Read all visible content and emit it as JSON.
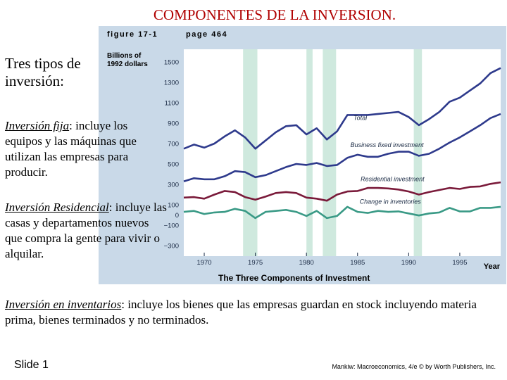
{
  "slide": {
    "title": "COMPONENTES DE LA INVERSION.",
    "intro": "Tres tipos de inversión:",
    "fixed": {
      "term": "Inversión fija",
      "rest": ": incluye los equipos y las máquinas que utilizan las empresas para producir."
    },
    "residential": {
      "term": "Inversión Residencial",
      "rest": ": incluye las casas y departamentos nuevos que compra la gente para vivir o alquilar."
    },
    "inventory": {
      "term": "Inversión en inventarios",
      "rest": ": incluye los bienes que las empresas guardan en stock incluyendo materia prima, bienes terminados y no terminados."
    },
    "slide_number": "Slide 1",
    "credit": "Mankiw: Macroeconomics, 4/e © by Worth Publishers, Inc."
  },
  "figure": {
    "header_left": "figure 17-1",
    "header_right": "page 464",
    "caption": "The Three Components of Investment"
  },
  "colors": {
    "title": "#b00000",
    "panel_bg": "#c9d9e8",
    "plot_bg": "#ffffff",
    "recession": "#cfe9de",
    "total": "#2e3a8c",
    "business_fixed": "#2e3a8c",
    "residential": "#7a1a3a",
    "inventories": "#3a9a86",
    "text": "#1a2a44"
  },
  "chart_data": {
    "type": "line",
    "title": "The Three Components of Investment",
    "ylabel": "Billions of 1992 dollars",
    "xlabel": "Year",
    "y_ticks": [
      1500,
      1300,
      1100,
      900,
      700,
      500,
      300,
      100,
      0,
      -100,
      -300
    ],
    "x_ticks": [
      1970,
      1975,
      1980,
      1985,
      1990,
      1995
    ],
    "xlim": [
      1968,
      1999
    ],
    "ylim": [
      -300,
      1500
    ],
    "grid": false,
    "recessions": [
      [
        1973.8,
        1975.2
      ],
      [
        1980.0,
        1980.6
      ],
      [
        1981.6,
        1982.9
      ],
      [
        1990.5,
        1991.3
      ]
    ],
    "series": [
      {
        "name": "Total",
        "key": "total",
        "points": [
          [
            1968,
            650
          ],
          [
            1969,
            690
          ],
          [
            1970,
            660
          ],
          [
            1971,
            700
          ],
          [
            1972,
            770
          ],
          [
            1973,
            830
          ],
          [
            1974,
            760
          ],
          [
            1975,
            650
          ],
          [
            1976,
            730
          ],
          [
            1977,
            810
          ],
          [
            1978,
            870
          ],
          [
            1979,
            880
          ],
          [
            1980,
            790
          ],
          [
            1981,
            850
          ],
          [
            1982,
            740
          ],
          [
            1983,
            820
          ],
          [
            1984,
            980
          ],
          [
            1985,
            980
          ],
          [
            1986,
            980
          ],
          [
            1987,
            990
          ],
          [
            1988,
            1000
          ],
          [
            1989,
            1010
          ],
          [
            1990,
            960
          ],
          [
            1991,
            880
          ],
          [
            1992,
            940
          ],
          [
            1993,
            1010
          ],
          [
            1994,
            1110
          ],
          [
            1995,
            1150
          ],
          [
            1996,
            1220
          ],
          [
            1997,
            1290
          ],
          [
            1998,
            1390
          ],
          [
            1999,
            1440
          ]
        ]
      },
      {
        "name": "Business fixed investment",
        "key": "business_fixed",
        "points": [
          [
            1968,
            330
          ],
          [
            1969,
            360
          ],
          [
            1970,
            350
          ],
          [
            1971,
            350
          ],
          [
            1972,
            380
          ],
          [
            1973,
            430
          ],
          [
            1974,
            420
          ],
          [
            1975,
            370
          ],
          [
            1976,
            390
          ],
          [
            1977,
            430
          ],
          [
            1978,
            470
          ],
          [
            1979,
            500
          ],
          [
            1980,
            490
          ],
          [
            1981,
            510
          ],
          [
            1982,
            480
          ],
          [
            1983,
            490
          ],
          [
            1984,
            560
          ],
          [
            1985,
            590
          ],
          [
            1986,
            570
          ],
          [
            1987,
            570
          ],
          [
            1988,
            600
          ],
          [
            1989,
            620
          ],
          [
            1990,
            620
          ],
          [
            1991,
            580
          ],
          [
            1992,
            600
          ],
          [
            1993,
            650
          ],
          [
            1994,
            710
          ],
          [
            1995,
            760
          ],
          [
            1996,
            820
          ],
          [
            1997,
            880
          ],
          [
            1998,
            950
          ],
          [
            1999,
            990
          ]
        ]
      },
      {
        "name": "Residential investment",
        "key": "residential",
        "points": [
          [
            1968,
            170
          ],
          [
            1969,
            175
          ],
          [
            1970,
            160
          ],
          [
            1971,
            200
          ],
          [
            1972,
            235
          ],
          [
            1973,
            225
          ],
          [
            1974,
            175
          ],
          [
            1975,
            150
          ],
          [
            1976,
            180
          ],
          [
            1977,
            215
          ],
          [
            1978,
            225
          ],
          [
            1979,
            215
          ],
          [
            1980,
            170
          ],
          [
            1981,
            160
          ],
          [
            1982,
            140
          ],
          [
            1983,
            200
          ],
          [
            1984,
            230
          ],
          [
            1985,
            235
          ],
          [
            1986,
            265
          ],
          [
            1987,
            265
          ],
          [
            1988,
            260
          ],
          [
            1989,
            250
          ],
          [
            1990,
            230
          ],
          [
            1991,
            200
          ],
          [
            1992,
            225
          ],
          [
            1993,
            245
          ],
          [
            1994,
            265
          ],
          [
            1995,
            255
          ],
          [
            1996,
            275
          ],
          [
            1997,
            280
          ],
          [
            1998,
            305
          ],
          [
            1999,
            320
          ]
        ]
      },
      {
        "name": "Change in inventories",
        "key": "inventories",
        "points": [
          [
            1968,
            30
          ],
          [
            1969,
            40
          ],
          [
            1970,
            10
          ],
          [
            1971,
            25
          ],
          [
            1972,
            30
          ],
          [
            1973,
            60
          ],
          [
            1974,
            40
          ],
          [
            1975,
            -30
          ],
          [
            1976,
            30
          ],
          [
            1977,
            40
          ],
          [
            1978,
            50
          ],
          [
            1979,
            30
          ],
          [
            1980,
            -10
          ],
          [
            1981,
            40
          ],
          [
            1982,
            -30
          ],
          [
            1983,
            -10
          ],
          [
            1984,
            80
          ],
          [
            1985,
            30
          ],
          [
            1986,
            20
          ],
          [
            1987,
            40
          ],
          [
            1988,
            30
          ],
          [
            1989,
            35
          ],
          [
            1990,
            15
          ],
          [
            1991,
            -5
          ],
          [
            1992,
            15
          ],
          [
            1993,
            25
          ],
          [
            1994,
            70
          ],
          [
            1995,
            35
          ],
          [
            1996,
            35
          ],
          [
            1997,
            70
          ],
          [
            1998,
            70
          ],
          [
            1999,
            80
          ]
        ]
      }
    ]
  }
}
